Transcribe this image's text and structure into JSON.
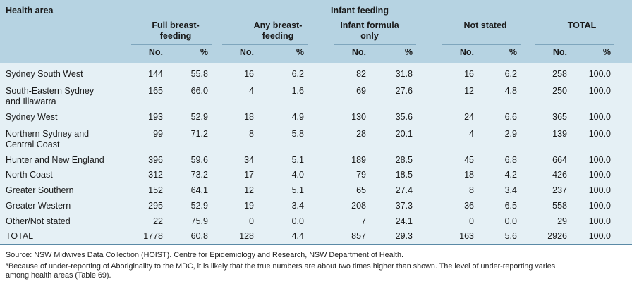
{
  "header": {
    "health_area": "Health area",
    "infant_feeding": "Infant feeding",
    "groups": [
      {
        "line1": "Full breast-",
        "line2": "feeding"
      },
      {
        "line1": "Any breast-",
        "line2": "feeding"
      },
      {
        "line1": "Infant formula",
        "line2": "only"
      },
      {
        "line1": "Not stated",
        "line2": ""
      },
      {
        "line1": "TOTAL",
        "line2": ""
      }
    ],
    "no": "No.",
    "pct": "%"
  },
  "rows": [
    {
      "area": "Sydney South West",
      "area2": "",
      "v": [
        "144",
        "55.8",
        "16",
        "6.2",
        "82",
        "31.8",
        "16",
        "6.2",
        "258",
        "100.0"
      ]
    },
    {
      "area": "South-Eastern Sydney",
      "area2": "and Illawarra",
      "v": [
        "165",
        "66.0",
        "4",
        "1.6",
        "69",
        "27.6",
        "12",
        "4.8",
        "250",
        "100.0"
      ]
    },
    {
      "area": "Sydney West",
      "area2": "",
      "v": [
        "193",
        "52.9",
        "18",
        "4.9",
        "130",
        "35.6",
        "24",
        "6.6",
        "365",
        "100.0"
      ]
    },
    {
      "area": "Northern Sydney and",
      "area2": "Central Coast",
      "v": [
        "99",
        "71.2",
        "8",
        "5.8",
        "28",
        "20.1",
        "4",
        "2.9",
        "139",
        "100.0"
      ]
    },
    {
      "area": "Hunter and New England",
      "area2": "",
      "v": [
        "396",
        "59.6",
        "34",
        "5.1",
        "189",
        "28.5",
        "45",
        "6.8",
        "664",
        "100.0"
      ]
    },
    {
      "area": "North Coast",
      "area2": "",
      "v": [
        "312",
        "73.2",
        "17",
        "4.0",
        "79",
        "18.5",
        "18",
        "4.2",
        "426",
        "100.0"
      ]
    },
    {
      "area": "Greater Southern",
      "area2": "",
      "v": [
        "152",
        "64.1",
        "12",
        "5.1",
        "65",
        "27.4",
        "8",
        "3.4",
        "237",
        "100.0"
      ]
    },
    {
      "area": "Greater Western",
      "area2": "",
      "v": [
        "295",
        "52.9",
        "19",
        "3.4",
        "208",
        "37.3",
        "36",
        "6.5",
        "558",
        "100.0"
      ]
    },
    {
      "area": "Other/Not stated",
      "area2": "",
      "v": [
        "22",
        "75.9",
        "0",
        "0.0",
        "7",
        "24.1",
        "0",
        "0.0",
        "29",
        "100.0"
      ]
    },
    {
      "area": "TOTAL",
      "area2": "",
      "v": [
        "1778",
        "60.8",
        "128",
        "4.4",
        "857",
        "29.3",
        "163",
        "5.6",
        "2926",
        "100.0"
      ]
    }
  ],
  "notes": {
    "source": "Source:  NSW Midwives Data Collection (HOIST). Centre for Epidemiology and Research, NSW Department of Health.",
    "footnote_1": "ªBecause of under-reporting of Aboriginality to the MDC, it is likely that the true numbers are about two times higher than shown. The level of under-reporting varies",
    "footnote_2": "among health areas (Table 69)."
  }
}
